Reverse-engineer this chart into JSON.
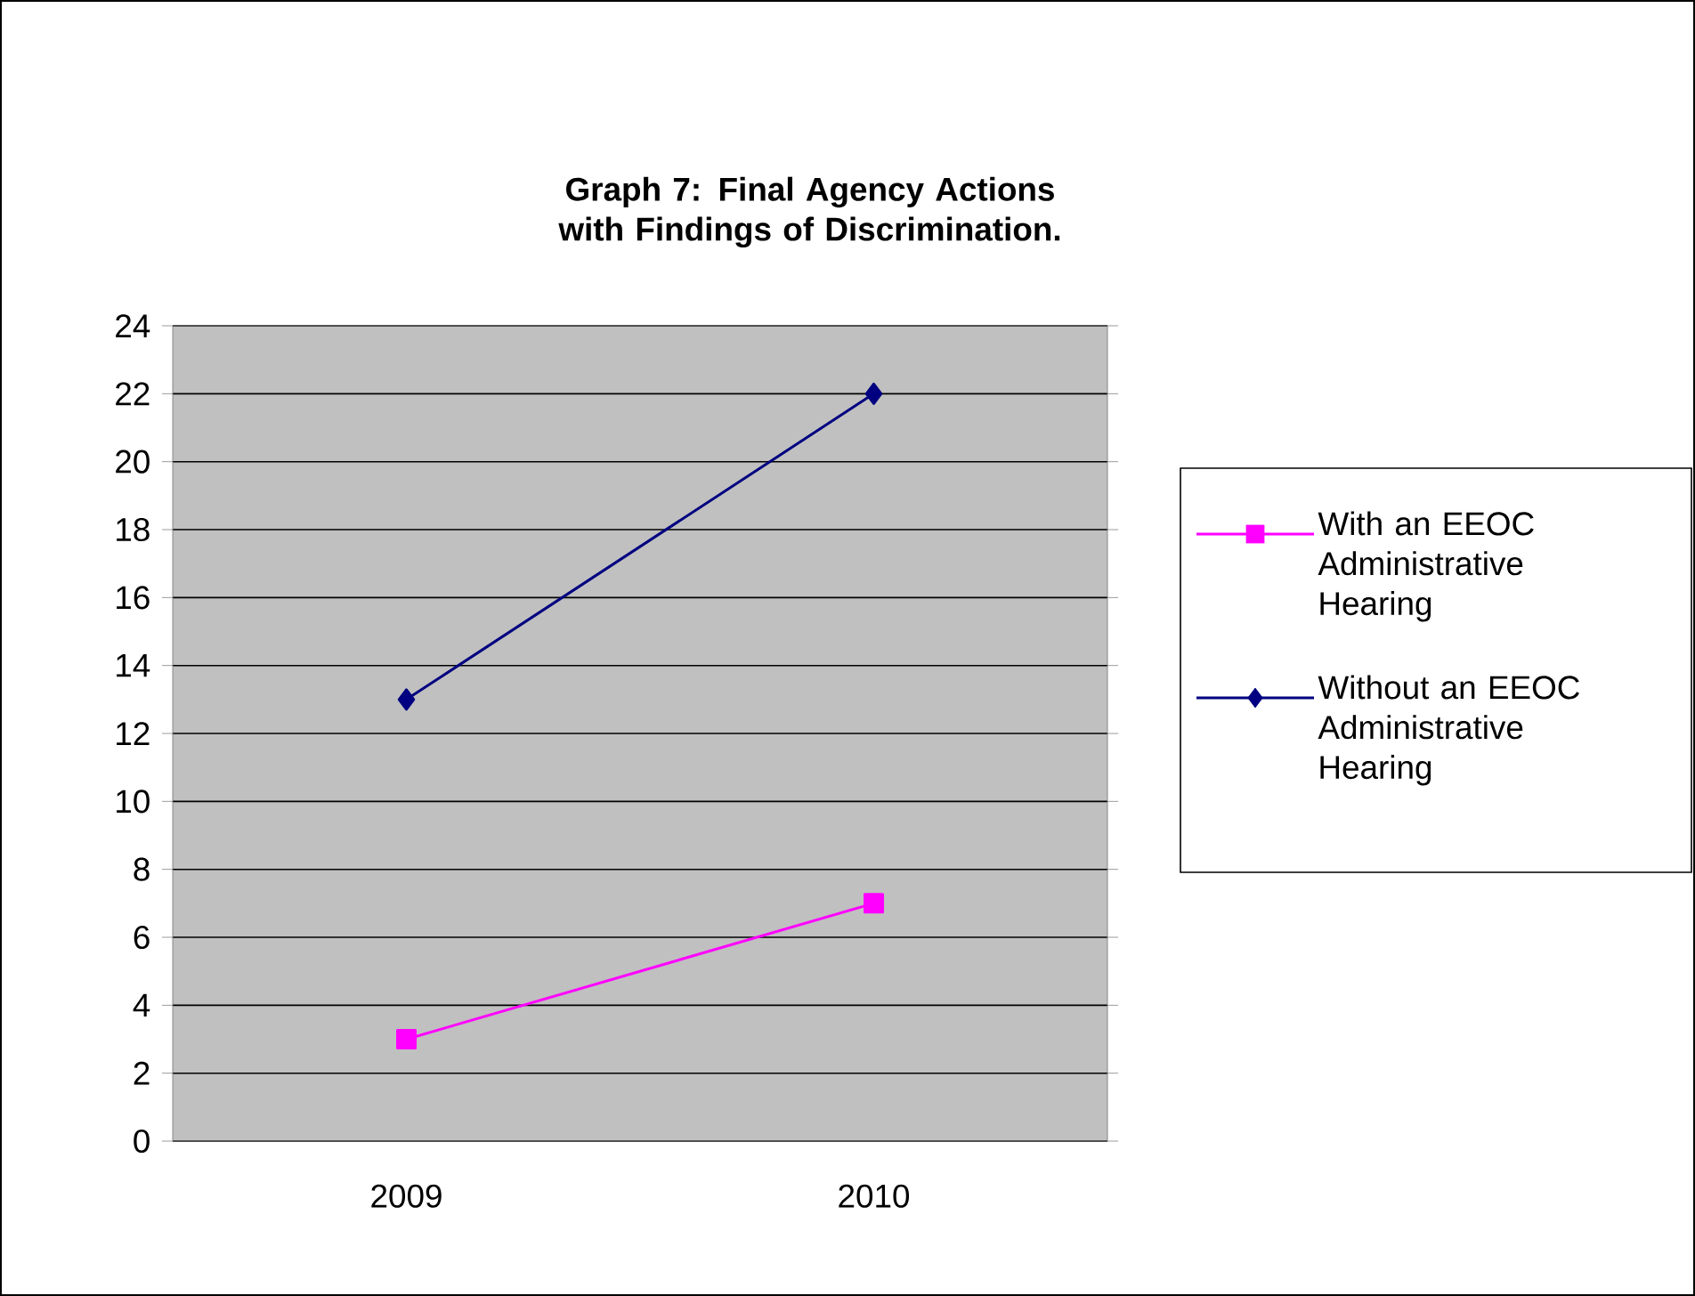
{
  "chart_data": {
    "type": "line",
    "title": "Graph 7: Final Agency Actions with Findings of Discrimination.",
    "categories": [
      "2009",
      "2010"
    ],
    "series": [
      {
        "name": "With an EEOC Administrative Hearing",
        "color": "#ff00ff",
        "marker": "square",
        "values": [
          3,
          7
        ]
      },
      {
        "name": "Without an EEOC Administrative Hearing",
        "color": "#000080",
        "marker": "diamond",
        "values": [
          13,
          22
        ]
      }
    ],
    "ylim": [
      0,
      24
    ],
    "yticks": [
      0,
      2,
      4,
      6,
      8,
      10,
      12,
      14,
      16,
      18,
      20,
      22,
      24
    ],
    "grid": "y",
    "legend": "right",
    "line_style": "solid"
  }
}
